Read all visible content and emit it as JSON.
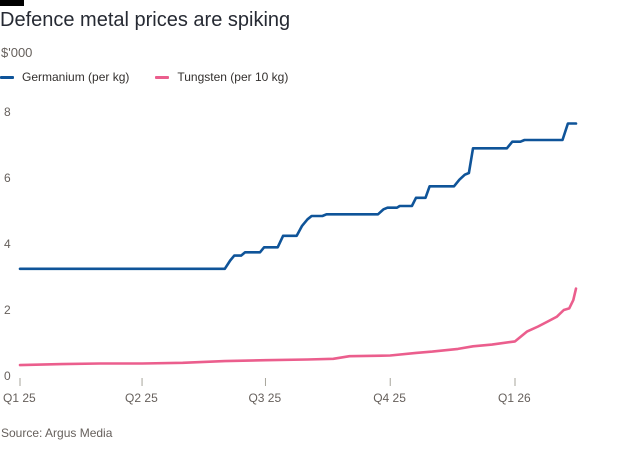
{
  "header": {
    "title": "Defence metal prices are spiking",
    "unit": "$'000"
  },
  "legend": [
    {
      "label": "Germanium (per kg)",
      "color": "#0f5499"
    },
    {
      "label": "Tungsten (per 10 kg)",
      "color": "#eb5e8d"
    }
  ],
  "source": "Source: Argus Media",
  "chart_data": {
    "type": "line",
    "title": "Defence metal prices are spiking",
    "ylabel": "$'000",
    "xlabel": "",
    "ylim": [
      0,
      8
    ],
    "yticks": [
      0,
      2,
      4,
      6,
      8
    ],
    "xlim": [
      "2025-01-01",
      "2026-02-28"
    ],
    "xticks": [
      {
        "label": "Q1 25",
        "date": "2025-01-01"
      },
      {
        "label": "Q2 25",
        "date": "2025-04-01"
      },
      {
        "label": "Q3 25",
        "date": "2025-07-01"
      },
      {
        "label": "Q4 25",
        "date": "2025-10-01"
      },
      {
        "label": "Q1 26",
        "date": "2026-01-01"
      }
    ],
    "grid": false,
    "legend_position": "top-left",
    "series": [
      {
        "name": "Germanium (per kg)",
        "color": "#0f5499",
        "step": true,
        "points": [
          [
            "2025-01-01",
            3.25
          ],
          [
            "2025-06-01",
            3.25
          ],
          [
            "2025-06-05",
            3.5
          ],
          [
            "2025-06-08",
            3.65
          ],
          [
            "2025-06-13",
            3.65
          ],
          [
            "2025-06-16",
            3.75
          ],
          [
            "2025-06-27",
            3.75
          ],
          [
            "2025-06-30",
            3.9
          ],
          [
            "2025-07-10",
            3.9
          ],
          [
            "2025-07-14",
            4.25
          ],
          [
            "2025-07-24",
            4.25
          ],
          [
            "2025-07-28",
            4.55
          ],
          [
            "2025-08-01",
            4.75
          ],
          [
            "2025-08-04",
            4.85
          ],
          [
            "2025-08-12",
            4.85
          ],
          [
            "2025-08-15",
            4.9
          ],
          [
            "2025-09-22",
            4.9
          ],
          [
            "2025-09-26",
            5.05
          ],
          [
            "2025-09-29",
            5.1
          ],
          [
            "2025-10-06",
            5.1
          ],
          [
            "2025-10-08",
            5.15
          ],
          [
            "2025-10-17",
            5.15
          ],
          [
            "2025-10-20",
            5.4
          ],
          [
            "2025-10-27",
            5.4
          ],
          [
            "2025-10-30",
            5.75
          ],
          [
            "2025-11-17",
            5.75
          ],
          [
            "2025-11-21",
            5.95
          ],
          [
            "2025-11-25",
            6.1
          ],
          [
            "2025-11-28",
            6.15
          ],
          [
            "2025-12-01",
            6.9
          ],
          [
            "2025-12-26",
            6.9
          ],
          [
            "2025-12-30",
            7.1
          ],
          [
            "2026-01-05",
            7.1
          ],
          [
            "2026-01-08",
            7.15
          ],
          [
            "2026-02-05",
            7.15
          ],
          [
            "2026-02-09",
            7.65
          ],
          [
            "2026-02-15",
            7.65
          ]
        ]
      },
      {
        "name": "Tungsten (per 10 kg)",
        "color": "#eb5e8d",
        "step": false,
        "points": [
          [
            "2025-01-01",
            0.33
          ],
          [
            "2025-02-01",
            0.36
          ],
          [
            "2025-03-01",
            0.38
          ],
          [
            "2025-04-01",
            0.38
          ],
          [
            "2025-05-01",
            0.4
          ],
          [
            "2025-06-01",
            0.45
          ],
          [
            "2025-07-01",
            0.48
          ],
          [
            "2025-08-01",
            0.5
          ],
          [
            "2025-08-20",
            0.52
          ],
          [
            "2025-09-01",
            0.6
          ],
          [
            "2025-10-01",
            0.62
          ],
          [
            "2025-10-20",
            0.7
          ],
          [
            "2025-11-01",
            0.74
          ],
          [
            "2025-11-20",
            0.82
          ],
          [
            "2025-12-01",
            0.9
          ],
          [
            "2025-12-15",
            0.95
          ],
          [
            "2026-01-01",
            1.05
          ],
          [
            "2026-01-10",
            1.35
          ],
          [
            "2026-01-18",
            1.5
          ],
          [
            "2026-01-25",
            1.65
          ],
          [
            "2026-02-01",
            1.8
          ],
          [
            "2026-02-06",
            2.0
          ],
          [
            "2026-02-10",
            2.05
          ],
          [
            "2026-02-13",
            2.3
          ],
          [
            "2026-02-15",
            2.65
          ]
        ]
      }
    ]
  }
}
